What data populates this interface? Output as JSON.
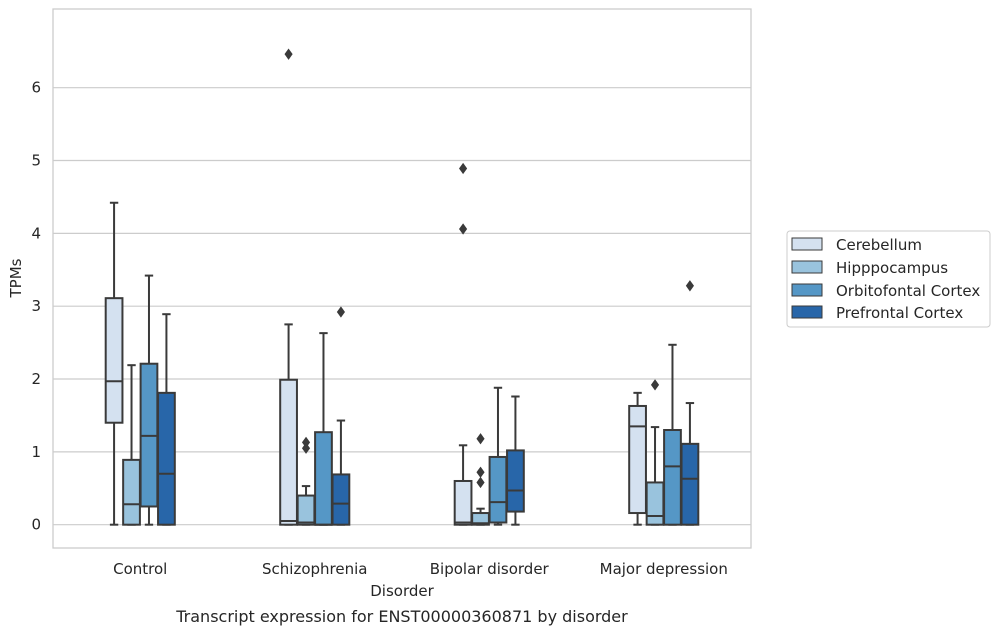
{
  "caption": "Transcript expression for ENST00000360871 by disorder",
  "chart_data": {
    "type": "box",
    "xlabel": "Disorder",
    "ylabel": "TPMs",
    "ylim": [
      -0.32,
      7.08
    ],
    "yticks": [
      0,
      1,
      2,
      3,
      4,
      5,
      6
    ],
    "grid": "horizontal",
    "legend_position": "right",
    "categories": [
      "Control",
      "Schizophrenia",
      "Bipolar disorder",
      "Major depression"
    ],
    "series": [
      {
        "name": "Cerebellum",
        "color": "#d4e1f0",
        "boxes": [
          {
            "whislo": 0.0,
            "q1": 1.4,
            "med": 1.97,
            "q3": 3.11,
            "whishi": 4.42,
            "fliers": []
          },
          {
            "whislo": 0.0,
            "q1": 0.0,
            "med": 0.05,
            "q3": 1.99,
            "whishi": 2.75,
            "fliers": [
              6.46
            ]
          },
          {
            "whislo": 0.0,
            "q1": 0.0,
            "med": 0.03,
            "q3": 0.6,
            "whishi": 1.09,
            "fliers": [
              4.89,
              4.06
            ]
          },
          {
            "whislo": 0.0,
            "q1": 0.16,
            "med": 1.35,
            "q3": 1.63,
            "whishi": 1.81,
            "fliers": []
          }
        ]
      },
      {
        "name": "Hipppocampus",
        "color": "#99c3dd",
        "boxes": [
          {
            "whislo": 0.0,
            "q1": 0.0,
            "med": 0.28,
            "q3": 0.89,
            "whishi": 2.19,
            "fliers": []
          },
          {
            "whislo": 0.0,
            "q1": 0.0,
            "med": 0.03,
            "q3": 0.4,
            "whishi": 0.53,
            "fliers": [
              1.13,
              1.05
            ]
          },
          {
            "whislo": 0.0,
            "q1": 0.0,
            "med": 0.02,
            "q3": 0.16,
            "whishi": 0.22,
            "fliers": [
              1.18,
              0.72,
              0.58
            ]
          },
          {
            "whislo": 0.0,
            "q1": 0.0,
            "med": 0.12,
            "q3": 0.58,
            "whishi": 1.34,
            "fliers": [
              1.92
            ]
          }
        ]
      },
      {
        "name": "Orbitofontal Cortex",
        "color": "#5597c6",
        "boxes": [
          {
            "whislo": 0.0,
            "q1": 0.25,
            "med": 1.22,
            "q3": 2.21,
            "whishi": 3.42,
            "fliers": []
          },
          {
            "whislo": 0.0,
            "q1": 0.0,
            "med": 0.0,
            "q3": 1.27,
            "whishi": 2.63,
            "fliers": []
          },
          {
            "whislo": 0.0,
            "q1": 0.03,
            "med": 0.31,
            "q3": 0.93,
            "whishi": 1.88,
            "fliers": []
          },
          {
            "whislo": 0.0,
            "q1": 0.0,
            "med": 0.8,
            "q3": 1.3,
            "whishi": 2.47,
            "fliers": []
          }
        ]
      },
      {
        "name": "Prefrontal Cortex",
        "color": "#2866a9",
        "boxes": [
          {
            "whislo": 0.0,
            "q1": 0.0,
            "med": 0.7,
            "q3": 1.81,
            "whishi": 2.89,
            "fliers": []
          },
          {
            "whislo": 0.0,
            "q1": 0.0,
            "med": 0.29,
            "q3": 0.69,
            "whishi": 1.43,
            "fliers": [
              2.92
            ]
          },
          {
            "whislo": 0.0,
            "q1": 0.18,
            "med": 0.47,
            "q3": 1.02,
            "whishi": 1.76,
            "fliers": []
          },
          {
            "whislo": 0.0,
            "q1": 0.0,
            "med": 0.63,
            "q3": 1.11,
            "whishi": 1.67,
            "fliers": [
              3.28
            ]
          }
        ]
      }
    ]
  }
}
